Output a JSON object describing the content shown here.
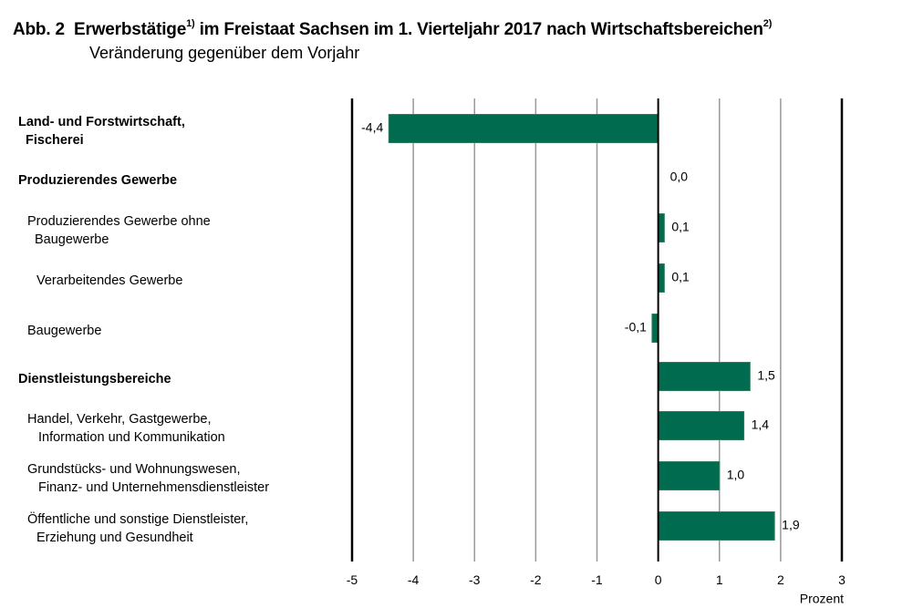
{
  "chart_data": {
    "type": "bar",
    "orientation": "horizontal",
    "title_prefix": "Abb. 2",
    "title_parts": [
      "Erwerbstätige",
      "1)",
      " im Freistaat Sachsen im 1. Vierteljahr 2017 nach Wirtschaftsbereichen",
      "2)"
    ],
    "subtitle": "Veränderung gegenüber dem Vorjahr",
    "xlabel": "Prozent",
    "xlim": [
      -5,
      3
    ],
    "xticks": [
      "-5",
      "-4",
      "-3",
      "-2",
      "-1",
      "0",
      "1",
      "2",
      "3"
    ],
    "grid": true,
    "bar_color": "#006B4F",
    "categories": [
      {
        "lines": [
          "Land- und Forstwirtschaft,",
          "Fischerei"
        ],
        "bold": true,
        "level": 0
      },
      {
        "lines": [
          "Produzierendes Gewerbe"
        ],
        "bold": true,
        "level": 0
      },
      {
        "lines": [
          "Produzierendes Gewerbe ohne",
          "Baugewerbe"
        ],
        "bold": false,
        "level": 1
      },
      {
        "lines": [
          "Verarbeitendes Gewerbe"
        ],
        "bold": false,
        "level": 2
      },
      {
        "lines": [
          "Baugewerbe"
        ],
        "bold": false,
        "level": 1
      },
      {
        "lines": [
          "Dienstleistungsbereiche"
        ],
        "bold": true,
        "level": 0
      },
      {
        "lines": [
          "Handel, Verkehr, Gastgewerbe,",
          "Information und Kommunikation"
        ],
        "bold": false,
        "level": 1
      },
      {
        "lines": [
          "Grundstücks- und Wohnungswesen,",
          "Finanz- und Unternehmensdienstleister"
        ],
        "bold": false,
        "level": 1
      },
      {
        "lines": [
          "Öffentliche und sonstige Dienstleister,",
          "Erziehung und Gesundheit"
        ],
        "bold": false,
        "level": 1
      }
    ],
    "values": [
      -4.4,
      0.0,
      0.1,
      0.1,
      -0.1,
      1.5,
      1.4,
      1.0,
      1.9
    ],
    "value_labels": [
      "-4,4",
      "0,0",
      "0,1",
      "0,1",
      "-0,1",
      "1,5",
      "1,4",
      "1,0",
      "1,9"
    ]
  }
}
